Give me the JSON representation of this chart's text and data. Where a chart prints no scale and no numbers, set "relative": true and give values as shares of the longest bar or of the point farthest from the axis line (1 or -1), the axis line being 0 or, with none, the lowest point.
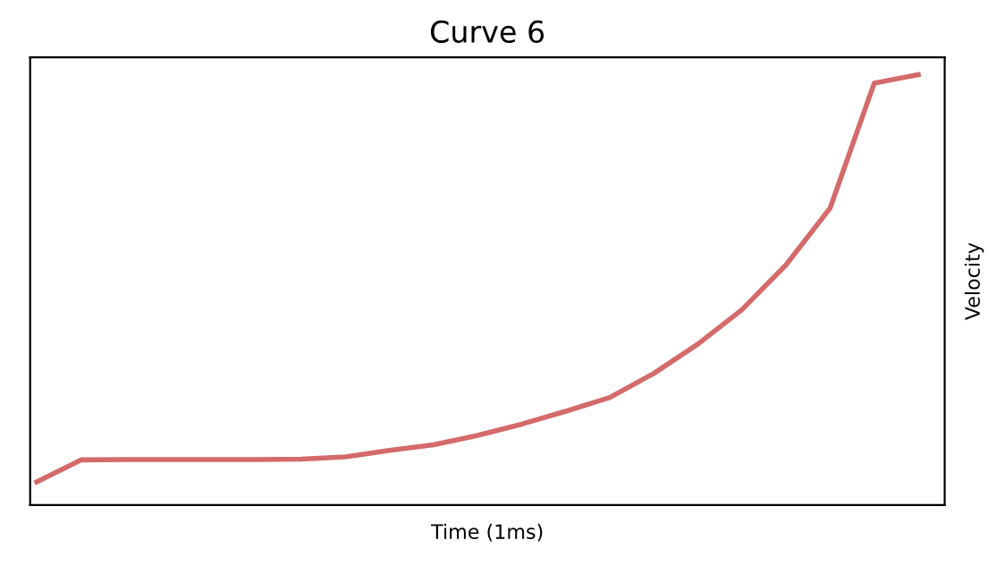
{
  "chart_data": {
    "type": "line",
    "title": "Curve 6",
    "xlabel": "Time (1ms)",
    "ylabel": "Velocity",
    "relative": true,
    "categories": [
      null,
      null,
      null,
      null,
      null,
      null,
      null,
      null,
      null,
      null,
      null,
      null,
      null,
      null,
      null,
      null,
      null,
      null,
      null,
      null,
      null
    ],
    "series": [
      {
        "color": "#d46a6a",
        "values": [
          0.054,
          0.105,
          0.106,
          0.106,
          0.106,
          0.106,
          0.107,
          0.112,
          0.127,
          0.14,
          0.162,
          0.188,
          0.218,
          0.25,
          0.306,
          0.374,
          0.454,
          0.558,
          0.69,
          0.98,
          1
        ]
      }
    ]
  }
}
